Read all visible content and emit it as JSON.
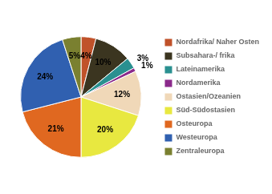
{
  "chart_data": {
    "type": "pie",
    "categories": [
      "Nordafrika/ Naher Osten",
      "Subsahara-/ frika",
      "Lateinamerika",
      "Nordamerika",
      "Ostasien/Ozeanien",
      "Süd-Südostasien",
      "Osteuropa",
      "Westeuropa",
      "Zentraleuropa"
    ],
    "values": [
      4,
      10,
      3,
      1,
      12,
      20,
      21,
      24,
      5
    ],
    "value_labels": [
      "4%",
      "10%",
      "3%",
      "1%",
      "12%",
      "20%",
      "21%",
      "24%",
      "5%"
    ],
    "colors": [
      "#C0522A",
      "#3B3520",
      "#2A9090",
      "#8B2A8B",
      "#F0D8B8",
      "#E8E840",
      "#E06820",
      "#3060B0",
      "#7A8030"
    ],
    "data_labels": true,
    "legend": "right"
  }
}
